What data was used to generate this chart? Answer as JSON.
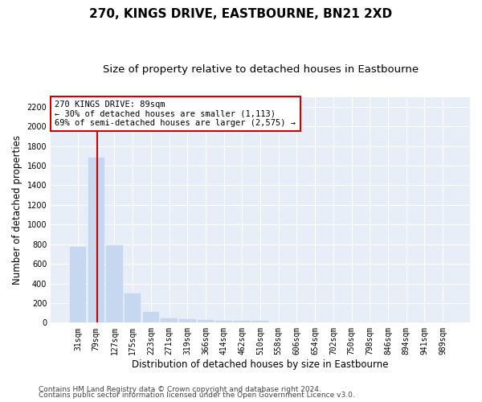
{
  "title": "270, KINGS DRIVE, EASTBOURNE, BN21 2XD",
  "subtitle": "Size of property relative to detached houses in Eastbourne",
  "xlabel": "Distribution of detached houses by size in Eastbourne",
  "ylabel": "Number of detached properties",
  "categories": [
    "31sqm",
    "79sqm",
    "127sqm",
    "175sqm",
    "223sqm",
    "271sqm",
    "319sqm",
    "366sqm",
    "414sqm",
    "462sqm",
    "510sqm",
    "558sqm",
    "606sqm",
    "654sqm",
    "702sqm",
    "750sqm",
    "798sqm",
    "846sqm",
    "894sqm",
    "941sqm",
    "989sqm"
  ],
  "values": [
    770,
    1680,
    790,
    300,
    110,
    45,
    33,
    25,
    22,
    22,
    20,
    0,
    0,
    0,
    0,
    0,
    0,
    0,
    0,
    0,
    0
  ],
  "bar_color": "#c5d8f0",
  "bar_edgecolor": "#c5d8f0",
  "vline_x_index": 1,
  "vline_color": "#cc0000",
  "annotation_line1": "270 KINGS DRIVE: 89sqm",
  "annotation_line2": "← 30% of detached houses are smaller (1,113)",
  "annotation_line3": "69% of semi-detached houses are larger (2,575) →",
  "annotation_box_facecolor": "#ffffff",
  "annotation_box_edgecolor": "#cc0000",
  "ylim": [
    0,
    2300
  ],
  "yticks": [
    0,
    200,
    400,
    600,
    800,
    1000,
    1200,
    1400,
    1600,
    1800,
    2000,
    2200
  ],
  "footer1": "Contains HM Land Registry data © Crown copyright and database right 2024.",
  "footer2": "Contains public sector information licensed under the Open Government Licence v3.0.",
  "fig_bg_color": "#ffffff",
  "plot_bg_color": "#e8eef8",
  "grid_color": "#ffffff",
  "title_fontsize": 11,
  "subtitle_fontsize": 9.5,
  "ylabel_fontsize": 8.5,
  "xlabel_fontsize": 8.5,
  "tick_fontsize": 7,
  "annotation_fontsize": 7.5,
  "footer_fontsize": 6.5
}
